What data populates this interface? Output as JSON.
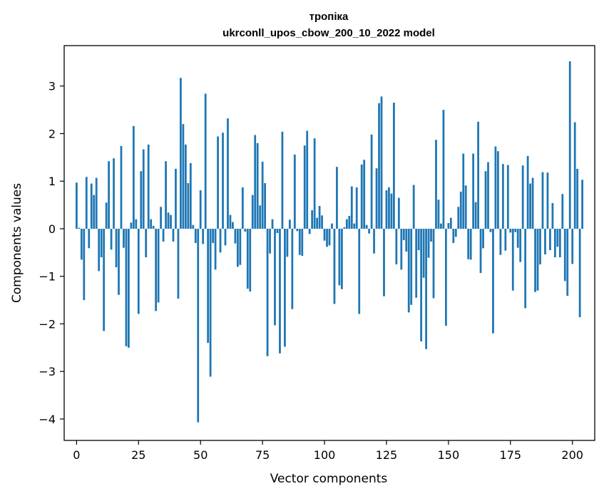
{
  "chart_data": {
    "type": "bar",
    "title": "тропіка",
    "subtitle": "ukrconll_upos_cbow_200_10_2022 model",
    "xlabel": "Vector components",
    "ylabel": "Components values",
    "xlim": [
      -5,
      209
    ],
    "ylim": [
      -4.45,
      3.85
    ],
    "xticks": [
      0,
      25,
      50,
      75,
      100,
      125,
      150,
      175,
      200
    ],
    "yticks": [
      -4,
      -3,
      -2,
      -1,
      0,
      1,
      2,
      3
    ],
    "grid": false,
    "bar_color": "#1f77b4",
    "values": [
      0.97,
      0.02,
      -0.65,
      -1.5,
      1.09,
      -0.41,
      0.95,
      0.71,
      1.07,
      -0.89,
      -0.6,
      -2.15,
      0.55,
      1.42,
      -0.44,
      1.48,
      -0.81,
      -1.39,
      1.74,
      -0.4,
      -2.47,
      -2.5,
      0.13,
      2.16,
      0.2,
      -1.79,
      1.21,
      1.67,
      -0.6,
      1.77,
      0.2,
      0.06,
      -1.73,
      -1.55,
      0.46,
      -0.27,
      1.42,
      0.34,
      0.29,
      -0.27,
      1.26,
      -1.47,
      3.17,
      2.2,
      1.77,
      0.96,
      1.38,
      0.08,
      -0.3,
      -4.07,
      0.81,
      -0.32,
      2.84,
      -2.4,
      -3.11,
      -0.3,
      -0.86,
      1.94,
      -0.5,
      2.02,
      -0.35,
      2.32,
      0.29,
      0.14,
      -0.31,
      -0.8,
      -0.76,
      0.87,
      -0.06,
      -1.26,
      -1.32,
      0.71,
      1.97,
      1.8,
      0.49,
      1.41,
      0.96,
      -2.68,
      -0.52,
      0.2,
      -2.03,
      -0.09,
      -2.62,
      2.04,
      -2.48,
      -0.59,
      0.19,
      -1.69,
      1.56,
      -0.05,
      -0.55,
      -0.57,
      1.75,
      2.06,
      -0.11,
      0.39,
      1.9,
      0.23,
      0.48,
      0.28,
      -0.25,
      -0.38,
      -0.35,
      0.11,
      -1.58,
      1.3,
      -1.19,
      -1.27,
      0.03,
      0.2,
      0.27,
      0.89,
      0.11,
      0.87,
      -1.79,
      1.35,
      1.45,
      0.08,
      -0.1,
      1.98,
      -0.52,
      1.27,
      2.64,
      2.78,
      -1.42,
      0.81,
      0.87,
      0.74,
      2.65,
      -0.75,
      0.65,
      -0.86,
      -0.24,
      -0.48,
      -1.76,
      -1.6,
      0.92,
      -1.45,
      -0.45,
      -2.37,
      -1.03,
      -2.53,
      -0.61,
      -0.27,
      -1.46,
      1.87,
      0.61,
      0.11,
      2.5,
      -2.04,
      0.12,
      0.23,
      -0.3,
      -0.17,
      0.46,
      0.78,
      1.58,
      0.91,
      -0.64,
      -0.65,
      1.58,
      0.56,
      2.25,
      -0.93,
      -0.41,
      1.21,
      1.4,
      -0.07,
      -2.2,
      1.73,
      1.63,
      -0.55,
      1.36,
      -0.46,
      1.34,
      -0.08,
      -1.3,
      -0.07,
      -0.4,
      -0.7,
      1.33,
      -1.67,
      1.53,
      0.95,
      1.07,
      -1.33,
      -1.3,
      -0.75,
      1.19,
      -0.54,
      1.18,
      -0.45,
      0.54,
      -0.6,
      -0.38,
      -0.6,
      0.73,
      -1.1,
      -1.41,
      3.52,
      -0.74,
      2.24,
      1.26,
      -1.86,
      1.03
    ]
  }
}
